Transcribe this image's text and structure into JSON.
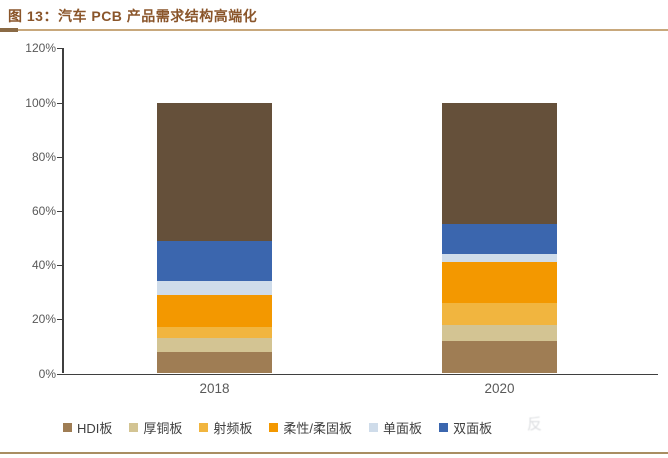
{
  "figure": {
    "title": "图 13：汽车 PCB 产品需求结构高端化",
    "watermark_ghost": "反"
  },
  "chart_data": {
    "type": "bar",
    "stacked": true,
    "title": "汽车 PCB 产品需求结构高端化",
    "categories": [
      "2018",
      "2020"
    ],
    "series": [
      {
        "name": "HDI板",
        "values": [
          8,
          12
        ],
        "color": "#9f7d54",
        "in_legend": true
      },
      {
        "name": "厚铜板",
        "values": [
          5,
          6
        ],
        "color": "#d3c493",
        "in_legend": true
      },
      {
        "name": "射频板",
        "values": [
          4,
          8
        ],
        "color": "#f1b53f",
        "in_legend": true
      },
      {
        "name": "柔性/柔固板",
        "values": [
          12,
          15
        ],
        "color": "#f39800",
        "in_legend": true
      },
      {
        "name": "单面板",
        "values": [
          5,
          3
        ],
        "color": "#cfdcea",
        "in_legend": true
      },
      {
        "name": "双面板",
        "values": [
          15,
          11
        ],
        "color": "#3b66ae",
        "in_legend": true
      },
      {
        "name": "",
        "values": [
          51,
          45
        ],
        "color": "#65503a",
        "in_legend": false
      }
    ],
    "xlabel": "",
    "ylabel": "",
    "ylim": [
      0,
      120
    ],
    "ytick_step": 20,
    "ytick_labels": [
      "0%",
      "20%",
      "40%",
      "60%",
      "80%",
      "100%",
      "120%"
    ],
    "grid": false,
    "legend_position": "bottom",
    "bar_total_percent": 100
  },
  "colors": {
    "title_text": "#8a552a",
    "title_divider": "#c8a87c",
    "divider_dark_tip": "#8a6a45",
    "axis_line": "#3f3f3f",
    "tick_label": "#595959",
    "legend_text": "#3f3f3f",
    "bottom_rule": "#a98e62",
    "background": "#ffffff"
  }
}
